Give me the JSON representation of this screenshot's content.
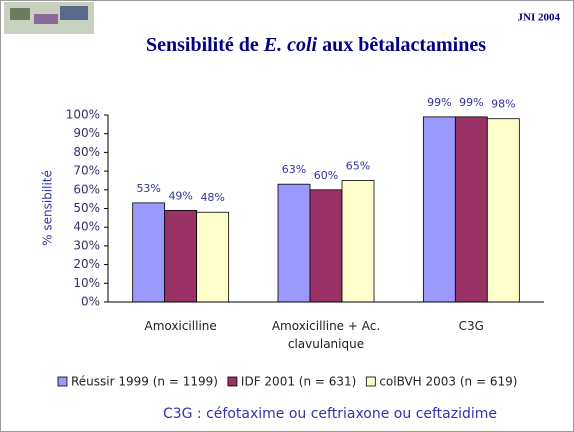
{
  "header": {
    "badge": "JNI 2004"
  },
  "chart_data": {
    "type": "bar",
    "title_parts": [
      "Sensibilité de ",
      "E. coli",
      " aux bêtalactamines"
    ],
    "y_label": "% sensibilité",
    "categories": [
      "Amoxicilline",
      "Amoxicilline + Ac. clavulanique",
      "C3G"
    ],
    "series": [
      {
        "name": "Réussir 1999 (n = 1199)",
        "color": "#9999ff",
        "values": [
          53,
          63,
          99
        ],
        "value_labels": [
          "53%",
          "63%",
          "99%"
        ]
      },
      {
        "name": "IDF 2001 (n = 631)",
        "color": "#993366",
        "values": [
          49,
          60,
          99
        ],
        "value_labels": [
          "49%",
          "60%",
          "99%"
        ]
      },
      {
        "name": "colBVH 2003 (n = 619)",
        "color": "#ffffcc",
        "values": [
          48,
          65,
          98
        ],
        "value_labels": [
          "48%",
          "65%",
          "98%"
        ]
      }
    ],
    "ylim": [
      0,
      100
    ],
    "yticks": [
      {
        "value": 0,
        "label": "0%"
      },
      {
        "value": 10,
        "label": "10%"
      },
      {
        "value": 20,
        "label": "20%"
      },
      {
        "value": 30,
        "label": "30%"
      },
      {
        "value": 40,
        "label": "40%"
      },
      {
        "value": 50,
        "label": "50%"
      },
      {
        "value": 60,
        "label": "60%"
      },
      {
        "value": 70,
        "label": "70%"
      },
      {
        "value": 80,
        "label": "80%"
      },
      {
        "value": 90,
        "label": "90%"
      },
      {
        "value": 100,
        "label": "100%"
      }
    ],
    "legend": "bottom",
    "note": "C3G : céfotaxime ou ceftriaxone ou ceftazidime"
  }
}
